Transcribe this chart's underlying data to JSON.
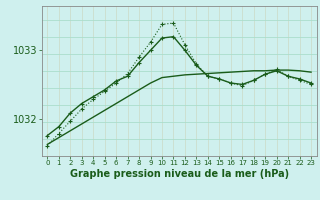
{
  "xlabel": "Graphe pression niveau de la mer (hPa)",
  "background_color": "#cff0ee",
  "grid_color_h": "#aaddcc",
  "grid_color_v": "#ccddcc",
  "line_color": "#1a5c1a",
  "hours": [
    0,
    1,
    2,
    3,
    4,
    5,
    6,
    7,
    8,
    9,
    10,
    11,
    12,
    13,
    14,
    15,
    16,
    17,
    18,
    19,
    20,
    21,
    22,
    23
  ],
  "line_smooth": [
    1031.62,
    1031.72,
    1031.82,
    1031.92,
    1032.02,
    1032.12,
    1032.22,
    1032.32,
    1032.42,
    1032.52,
    1032.6,
    1032.62,
    1032.64,
    1032.65,
    1032.66,
    1032.67,
    1032.68,
    1032.69,
    1032.7,
    1032.7,
    1032.71,
    1032.71,
    1032.7,
    1032.68
  ],
  "line_solid_marker": [
    1031.75,
    1031.88,
    1032.08,
    1032.22,
    1032.32,
    1032.42,
    1032.55,
    1032.62,
    1032.82,
    1033.0,
    1033.18,
    1033.2,
    1033.0,
    1032.78,
    1032.62,
    1032.58,
    1032.52,
    1032.5,
    1032.56,
    1032.65,
    1032.7,
    1032.62,
    1032.58,
    1032.52
  ],
  "line_dotted_marker": [
    1031.6,
    1031.78,
    1031.96,
    1032.14,
    1032.28,
    1032.4,
    1032.52,
    1032.66,
    1032.9,
    1033.12,
    1033.38,
    1033.4,
    1033.08,
    1032.8,
    1032.62,
    1032.58,
    1032.52,
    1032.48,
    1032.56,
    1032.65,
    1032.72,
    1032.62,
    1032.56,
    1032.5
  ],
  "ylim": [
    1031.45,
    1033.65
  ],
  "yticks": [
    1032.0,
    1033.0
  ],
  "marker": "+"
}
